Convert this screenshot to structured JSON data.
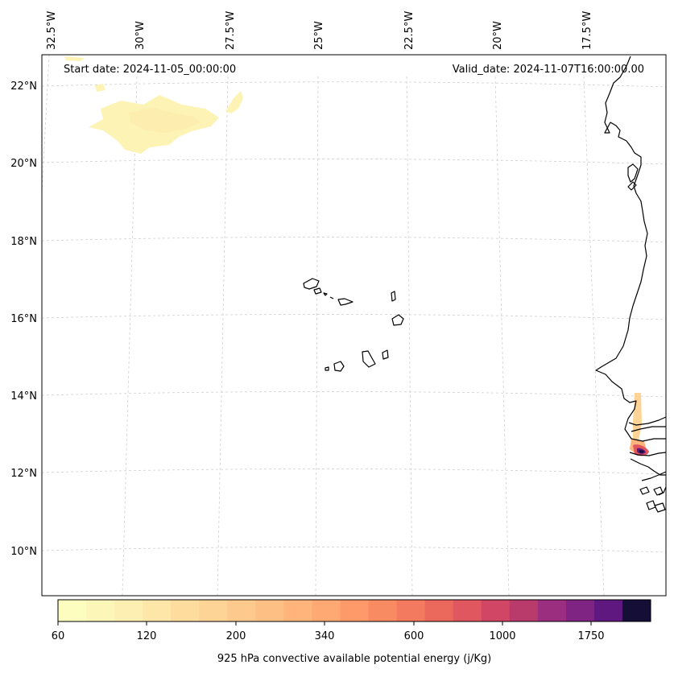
{
  "map": {
    "start_date": "Start date: 2024-11-05_00:00:00",
    "valid_date": "Valid_date: 2024-11-07T16:00:00.00",
    "lon_labels": [
      "32.5°W",
      "30°W",
      "27.5°W",
      "25°W",
      "22.5°W",
      "20°W",
      "17.5°W"
    ],
    "lat_labels": [
      "22°N",
      "20°N",
      "18°N",
      "16°N",
      "14°N",
      "12°N",
      "10°N"
    ],
    "grid": true,
    "coastline_color": "#000000"
  },
  "colorbar": {
    "title": "925 hPa convective available potential energy (j/Kg)",
    "tick_labels": [
      "60",
      "120",
      "200",
      "340",
      "600",
      "1000",
      "1750"
    ],
    "colors": [
      "#fcfdbf",
      "#fcf6b8",
      "#fdefb1",
      "#fde6a7",
      "#fedc9e",
      "#fed396",
      "#fec98d",
      "#febf84",
      "#feb47b",
      "#fea973",
      "#fe9a6a",
      "#f98b63",
      "#f37a5e",
      "#eb695c",
      "#e0575f",
      "#d14565",
      "#b83b6c",
      "#9c2e7f",
      "#7f2482",
      "#5f187f",
      "#150e37"
    ]
  }
}
